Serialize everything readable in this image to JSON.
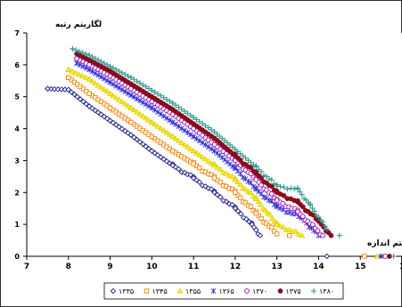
{
  "chart_data": {
    "type": "scatter",
    "ylabel": "لگاریتم رتبه",
    "xlabel": "اریتم اندازه",
    "xlim": [
      7,
      16
    ],
    "ylim": [
      0,
      7
    ],
    "xticks": [
      "7",
      "8",
      "9",
      "10",
      "11",
      "12",
      "13",
      "14",
      "15",
      "1"
    ],
    "yticks": [
      "0",
      "1",
      "2",
      "3",
      "4",
      "5",
      "6",
      "7"
    ],
    "grid": false,
    "legend_position": "bottom",
    "series": [
      {
        "name": "۱۳۳۵",
        "marker": "diamond",
        "color": "#1f1f8f",
        "points": [
          [
            7.5,
            5.25
          ],
          [
            8.0,
            5.22
          ],
          [
            8.5,
            4.7
          ],
          [
            9.0,
            4.25
          ],
          [
            9.5,
            3.8
          ],
          [
            10.0,
            3.3
          ],
          [
            10.5,
            2.85
          ],
          [
            11.0,
            2.45
          ],
          [
            11.5,
            2.0
          ],
          [
            12.0,
            1.5
          ],
          [
            12.4,
            1.0
          ],
          [
            12.6,
            0.65
          ],
          [
            14.2,
            0.0
          ]
        ]
      },
      {
        "name": "۱۳۴۵",
        "marker": "square",
        "color": "#ff7f00",
        "points": [
          [
            8.0,
            5.6
          ],
          [
            8.5,
            5.1
          ],
          [
            9.0,
            4.65
          ],
          [
            9.5,
            4.2
          ],
          [
            10.0,
            3.75
          ],
          [
            10.5,
            3.3
          ],
          [
            11.0,
            2.9
          ],
          [
            11.5,
            2.45
          ],
          [
            12.0,
            2.0
          ],
          [
            12.5,
            1.35
          ],
          [
            13.0,
            0.7
          ],
          [
            13.3,
            0.65
          ],
          [
            15.1,
            0.0
          ]
        ]
      },
      {
        "name": "۱۳۵۵",
        "marker": "triangle",
        "color": "#ffee00",
        "points": [
          [
            8.0,
            5.85
          ],
          [
            8.5,
            5.55
          ],
          [
            9.0,
            5.1
          ],
          [
            9.5,
            4.65
          ],
          [
            10.0,
            4.2
          ],
          [
            10.5,
            3.75
          ],
          [
            11.0,
            3.3
          ],
          [
            11.5,
            2.85
          ],
          [
            12.0,
            2.4
          ],
          [
            12.5,
            1.8
          ],
          [
            13.0,
            1.0
          ],
          [
            13.6,
            0.65
          ],
          [
            15.4,
            0.0
          ]
        ]
      },
      {
        "name": "۱۳۶۵",
        "marker": "asterisk",
        "color": "#3030e0",
        "points": [
          [
            8.2,
            6.05
          ],
          [
            8.5,
            5.85
          ],
          [
            9.0,
            5.45
          ],
          [
            9.5,
            5.05
          ],
          [
            10.0,
            4.65
          ],
          [
            10.5,
            4.2
          ],
          [
            11.0,
            3.75
          ],
          [
            11.5,
            3.3
          ],
          [
            12.0,
            2.75
          ],
          [
            12.5,
            2.1
          ],
          [
            13.0,
            1.55
          ],
          [
            13.6,
            1.2
          ],
          [
            14.0,
            0.65
          ],
          [
            15.5,
            0.0
          ]
        ]
      },
      {
        "name": "۱۳۷۰",
        "marker": "circle",
        "color": "#a000c0",
        "points": [
          [
            8.2,
            6.2
          ],
          [
            8.5,
            6.0
          ],
          [
            9.0,
            5.65
          ],
          [
            9.5,
            5.25
          ],
          [
            10.0,
            4.85
          ],
          [
            10.5,
            4.45
          ],
          [
            11.0,
            4.0
          ],
          [
            11.5,
            3.5
          ],
          [
            12.0,
            3.0
          ],
          [
            12.5,
            2.4
          ],
          [
            13.0,
            1.75
          ],
          [
            13.5,
            1.4
          ],
          [
            14.1,
            0.65
          ],
          [
            15.6,
            0.0
          ]
        ]
      },
      {
        "name": "۱۳۷۵",
        "marker": "dot",
        "color": "#8b0a1a",
        "points": [
          [
            8.2,
            6.35
          ],
          [
            8.5,
            6.15
          ],
          [
            9.0,
            5.8
          ],
          [
            9.5,
            5.4
          ],
          [
            10.0,
            5.0
          ],
          [
            10.5,
            4.6
          ],
          [
            11.0,
            4.15
          ],
          [
            11.5,
            3.7
          ],
          [
            12.0,
            3.15
          ],
          [
            12.5,
            2.6
          ],
          [
            13.0,
            2.0
          ],
          [
            13.5,
            1.7
          ],
          [
            14.0,
            1.1
          ],
          [
            14.3,
            0.65
          ],
          [
            15.7,
            0.0
          ]
        ]
      },
      {
        "name": "۱۳۸۰",
        "marker": "plus",
        "color": "#2e9a8e",
        "points": [
          [
            8.1,
            6.5
          ],
          [
            8.5,
            6.3
          ],
          [
            9.0,
            5.95
          ],
          [
            9.5,
            5.6
          ],
          [
            10.0,
            5.2
          ],
          [
            10.5,
            4.8
          ],
          [
            11.0,
            4.35
          ],
          [
            11.5,
            3.9
          ],
          [
            12.0,
            3.35
          ],
          [
            12.5,
            2.8
          ],
          [
            13.0,
            2.2
          ],
          [
            13.5,
            2.1
          ],
          [
            13.8,
            1.6
          ],
          [
            14.2,
            0.85
          ],
          [
            14.5,
            0.65
          ],
          [
            15.8,
            0.0
          ]
        ]
      }
    ]
  }
}
